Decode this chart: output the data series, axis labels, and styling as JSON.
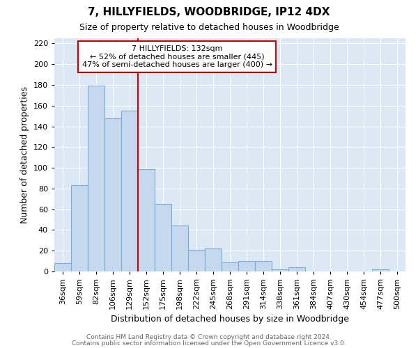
{
  "title": "7, HILLYFIELDS, WOODBRIDGE, IP12 4DX",
  "subtitle": "Size of property relative to detached houses in Woodbridge",
  "xlabel": "Distribution of detached houses by size in Woodbridge",
  "ylabel": "Number of detached properties",
  "footnote1": "Contains HM Land Registry data © Crown copyright and database right 2024.",
  "footnote2": "Contains public sector information licensed under the Open Government Licence v3.0.",
  "bar_labels": [
    "36sqm",
    "59sqm",
    "82sqm",
    "106sqm",
    "129sqm",
    "152sqm",
    "175sqm",
    "198sqm",
    "222sqm",
    "245sqm",
    "268sqm",
    "291sqm",
    "314sqm",
    "338sqm",
    "361sqm",
    "384sqm",
    "407sqm",
    "430sqm",
    "454sqm",
    "477sqm",
    "500sqm"
  ],
  "bar_values": [
    8,
    83,
    179,
    148,
    155,
    99,
    65,
    44,
    21,
    22,
    9,
    10,
    10,
    2,
    4,
    0,
    0,
    0,
    0,
    2,
    0
  ],
  "bar_color": "#c5d8ee",
  "bar_edge_color": "#7aaed4",
  "background_color": "#dce9f5",
  "red_line_index": 4,
  "annotation_title": "7 HILLYFIELDS: 132sqm",
  "annotation_line1": "← 52% of detached houses are smaller (445)",
  "annotation_line2": "47% of semi-detached houses are larger (400) →",
  "ylim": [
    0,
    225
  ],
  "yticks": [
    0,
    20,
    40,
    60,
    80,
    100,
    120,
    140,
    160,
    180,
    200,
    220
  ],
  "red_line_color": "#cc0000",
  "annotation_box_edge": "#cc0000",
  "title_fontsize": 11,
  "subtitle_fontsize": 9,
  "ylabel_fontsize": 9,
  "xlabel_fontsize": 9,
  "tick_fontsize": 8,
  "footnote_fontsize": 6.5,
  "footnote_color": "#666666"
}
